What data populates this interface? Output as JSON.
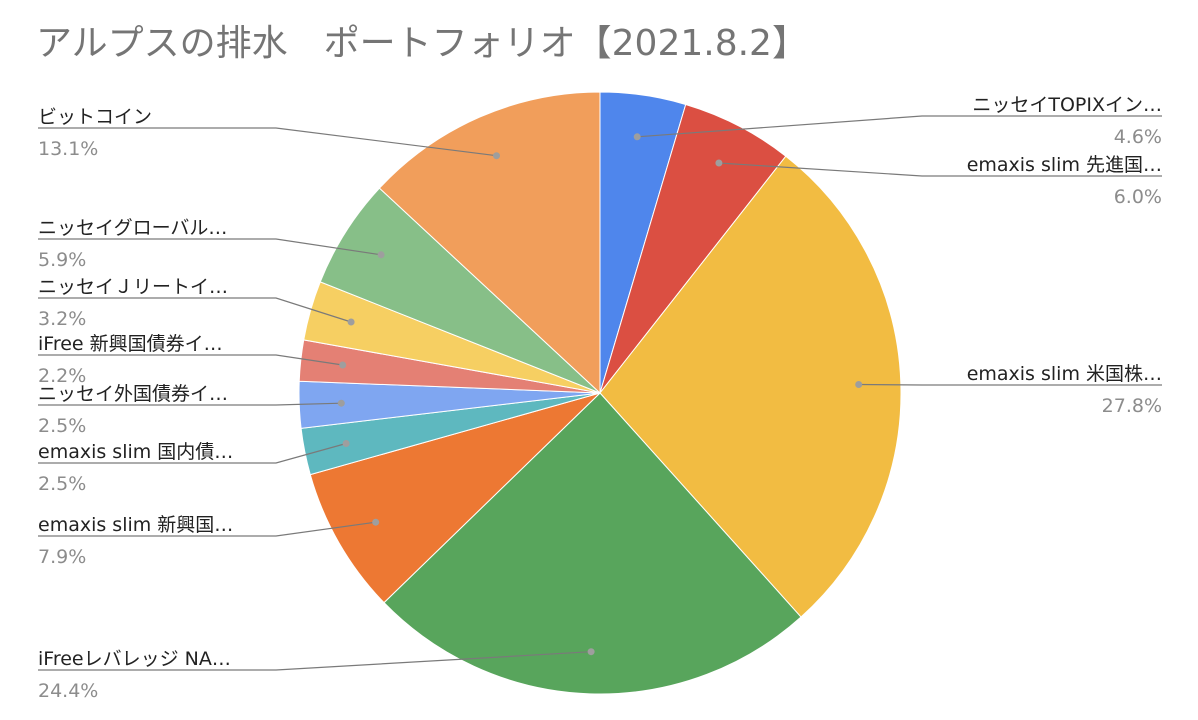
{
  "chart_data": {
    "type": "pie",
    "title": "アルプスの排水　ポートフォリオ【2021.8.2】",
    "slices": [
      {
        "label": "ニッセイTOPIXイン…",
        "value": 4.6,
        "display": "4.6%",
        "color": "#4f86ec"
      },
      {
        "label": "emaxis slim 先進国…",
        "value": 6.0,
        "display": "6.0%",
        "color": "#db4f42"
      },
      {
        "label": "emaxis slim 米国株…",
        "value": 27.8,
        "display": "27.8%",
        "color": "#f2bc42"
      },
      {
        "label": "iFreeレバレッジ NA…",
        "value": 24.4,
        "display": "24.4%",
        "color": "#58a55c"
      },
      {
        "label": "emaxis slim 新興国…",
        "value": 7.9,
        "display": "7.9%",
        "color": "#ed7833"
      },
      {
        "label": "emaxis slim  国内債…",
        "value": 2.5,
        "display": "2.5%",
        "color": "#5eb8bf"
      },
      {
        "label": "ニッセイ外国債券イ…",
        "value": 2.5,
        "display": "2.5%",
        "color": "#7fa6f1"
      },
      {
        "label": "iFree 新興国債券イ…",
        "value": 2.2,
        "display": "2.2%",
        "color": "#e48074"
      },
      {
        "label": "ニッセイＪリートイ…",
        "value": 3.2,
        "display": "3.2%",
        "color": "#f6cf62"
      },
      {
        "label": "ニッセイグローバル…",
        "value": 5.9,
        "display": "5.9%",
        "color": "#87bf88"
      },
      {
        "label": "ビットコイン",
        "value": 13.1,
        "display": "13.1%",
        "color": "#f19e5b"
      }
    ],
    "legend": "callouts",
    "start_angle": "12 o'clock",
    "direction": "clockwise"
  }
}
